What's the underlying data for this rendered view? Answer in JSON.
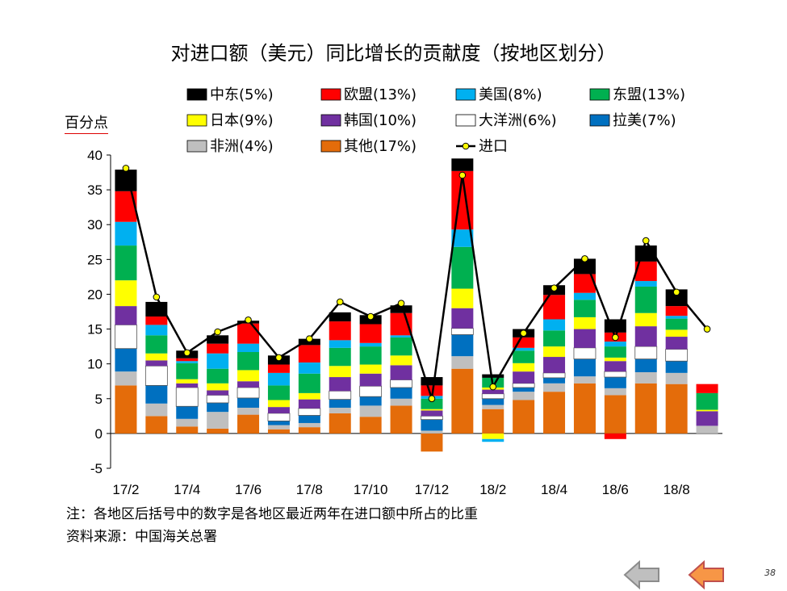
{
  "page": {
    "number": "38"
  },
  "chart_data": {
    "type": "bar",
    "stacked": true,
    "title": "对进口额（美元）同比增长的贡献度（按地区划分）",
    "ylabel": "百分点",
    "xlabel": "",
    "ylim": [
      -5,
      40
    ],
    "yticks": [
      -5,
      0,
      5,
      10,
      15,
      20,
      25,
      30,
      35,
      40
    ],
    "grid": false,
    "legend_position": "top",
    "categories": [
      "17/2",
      "17/3",
      "17/4",
      "17/5",
      "17/6",
      "17/7",
      "17/8",
      "17/9",
      "17/10",
      "17/11",
      "17/12",
      "18/1",
      "18/2",
      "18/3",
      "18/4",
      "18/5",
      "18/6",
      "18/7",
      "18/8",
      "18/9"
    ],
    "tick_labels": [
      "17/2",
      "17/4",
      "17/6",
      "17/8",
      "17/10",
      "17/12",
      "18/2",
      "18/4",
      "18/6",
      "18/8"
    ],
    "series": [
      {
        "name": "其他(17%)",
        "color": "#E46C0A",
        "values": [
          6.9,
          2.5,
          1.0,
          0.7,
          2.7,
          0.6,
          0.9,
          2.9,
          2.4,
          4.0,
          -2.6,
          9.3,
          3.5,
          4.8,
          6.0,
          7.2,
          5.5,
          7.2,
          7.1,
          0.0
        ]
      },
      {
        "name": "非洲(4%)",
        "color": "#BFBFBF",
        "values": [
          2.0,
          1.8,
          1.1,
          2.4,
          1.0,
          0.6,
          0.6,
          0.8,
          1.6,
          1.0,
          0.4,
          1.8,
          0.6,
          1.2,
          1.2,
          1.0,
          1.0,
          1.6,
          1.6,
          1.1
        ]
      },
      {
        "name": "拉美(7%)",
        "color": "#0070C0",
        "values": [
          3.3,
          2.6,
          1.8,
          1.3,
          1.4,
          0.6,
          1.1,
          1.2,
          1.3,
          1.6,
          1.6,
          3.1,
          0.9,
          0.6,
          0.8,
          2.5,
          1.6,
          1.9,
          1.7,
          0.0
        ]
      },
      {
        "name": "大洋洲(6%)",
        "color": "#FFFFFF",
        "values": [
          3.4,
          2.8,
          2.7,
          1.1,
          1.5,
          1.1,
          1.0,
          1.2,
          1.5,
          1.1,
          0.5,
          0.9,
          0.7,
          0.6,
          0.7,
          1.6,
          0.8,
          1.8,
          1.7,
          0.0
        ]
      },
      {
        "name": "韩国(10%)",
        "color": "#7030A0",
        "values": [
          2.7,
          0.8,
          0.6,
          0.7,
          0.9,
          0.9,
          1.3,
          2.0,
          1.8,
          2.1,
          0.8,
          2.9,
          0.6,
          1.7,
          2.3,
          2.7,
          1.5,
          2.9,
          1.8,
          2.1
        ]
      },
      {
        "name": "日本(9%)",
        "color": "#FFFF00",
        "values": [
          3.7,
          1.0,
          0.6,
          1.0,
          1.6,
          1.0,
          0.9,
          1.6,
          1.3,
          1.4,
          0.2,
          2.8,
          0.3,
          1.2,
          1.5,
          1.7,
          0.5,
          1.9,
          1.0,
          0.2
        ]
      },
      {
        "name": "东盟(13%)",
        "color": "#00B050",
        "values": [
          5.0,
          2.6,
          2.3,
          2.1,
          2.6,
          2.1,
          2.8,
          2.6,
          2.6,
          2.6,
          1.5,
          6.0,
          1.4,
          1.8,
          2.3,
          2.5,
          1.6,
          3.8,
          1.6,
          2.4
        ]
      },
      {
        "name": "美国(8%)",
        "color": "#00B0F0",
        "values": [
          3.4,
          1.5,
          0.3,
          2.2,
          1.2,
          1.8,
          1.6,
          1.1,
          0.5,
          0.3,
          0.4,
          2.5,
          0.0,
          0.4,
          1.6,
          1.0,
          0.7,
          0.8,
          0.4,
          0.0
        ]
      },
      {
        "name": "欧盟(13%)",
        "color": "#FF0000",
        "values": [
          4.4,
          1.2,
          0.4,
          1.4,
          2.9,
          1.2,
          2.5,
          2.7,
          2.7,
          3.2,
          1.5,
          8.4,
          0.0,
          1.5,
          3.5,
          2.7,
          1.3,
          2.8,
          1.4,
          1.3
        ]
      },
      {
        "name": "中东(5%)",
        "color": "#000000",
        "values": [
          3.1,
          2.1,
          1.1,
          1.2,
          0.4,
          1.3,
          0.9,
          1.3,
          1.3,
          1.1,
          1.2,
          1.8,
          0.5,
          1.2,
          1.4,
          2.2,
          1.9,
          2.3,
          2.4,
          0.0
        ]
      }
    ],
    "negative_extras": {
      "18/2_日本": -0.8,
      "18/2_美国": -0.4,
      "18/6_欧盟": -0.8
    },
    "line": {
      "name": "进口",
      "values": [
        38.1,
        19.6,
        11.6,
        14.6,
        16.3,
        10.9,
        13.6,
        18.9,
        16.8,
        18.7,
        5.0,
        37.1,
        6.7,
        14.4,
        20.9,
        25.1,
        13.8,
        27.7,
        20.3,
        15.0
      ]
    },
    "notes": [
      "注：各地区后括号中的数字是各地区最近两年在进口额中所占的比重",
      "资料来源：中国海关总署"
    ]
  }
}
